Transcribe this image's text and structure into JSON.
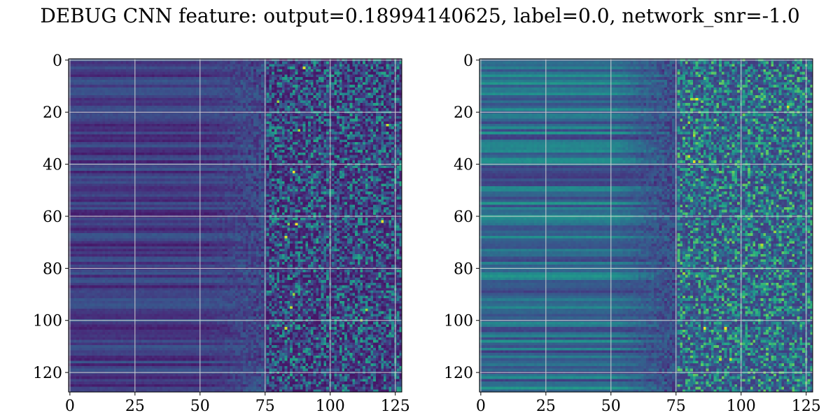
{
  "chart_data": [
    {
      "type": "heatmap",
      "title": "DEBUG CNN feature: output=0.18994140625, label=0.0, network_snr=-1.0",
      "colormap": "viridis",
      "grid": true,
      "rows": 128,
      "cols": 128,
      "xlim": [
        0,
        127
      ],
      "ylim": [
        127,
        0
      ],
      "xticks": [
        0,
        25,
        50,
        75,
        100,
        125
      ],
      "yticks": [
        0,
        20,
        40,
        60,
        80,
        100,
        120
      ],
      "panels": [
        {
          "name": "",
          "value_range": [
            0,
            1
          ],
          "description_level": {
            "left_region_mean": 0.18,
            "right_region_mean": 0.25,
            "max": 0.82
          },
          "bright_spots": [
            [
              3,
              90
            ],
            [
              63,
              84
            ],
            [
              63,
              87
            ],
            [
              68,
              83
            ],
            [
              27,
              88
            ],
            [
              43,
              86
            ],
            [
              90,
              86
            ],
            [
              95,
              85
            ],
            [
              100,
              112
            ],
            [
              103,
              83
            ],
            [
              25,
              122
            ],
            [
              62,
              120
            ],
            [
              16,
              80
            ],
            [
              96,
              114
            ]
          ]
        },
        {
          "name": "",
          "value_range": [
            0,
            1
          ],
          "description_level": {
            "left_region_mean": 0.35,
            "right_region_mean": 0.42,
            "max": 0.88
          },
          "bright_spots": [
            [
              15,
              81
            ],
            [
              15,
              83
            ],
            [
              39,
              82
            ],
            [
              39,
              84
            ],
            [
              24,
              80
            ],
            [
              29,
              82
            ],
            [
              82,
              78
            ],
            [
              103,
              86
            ],
            [
              103,
              94
            ],
            [
              115,
              92
            ],
            [
              115,
              96
            ],
            [
              18,
              118
            ],
            [
              71,
              108
            ],
            [
              66,
              113
            ],
            [
              37,
              80
            ]
          ]
        }
      ]
    }
  ]
}
